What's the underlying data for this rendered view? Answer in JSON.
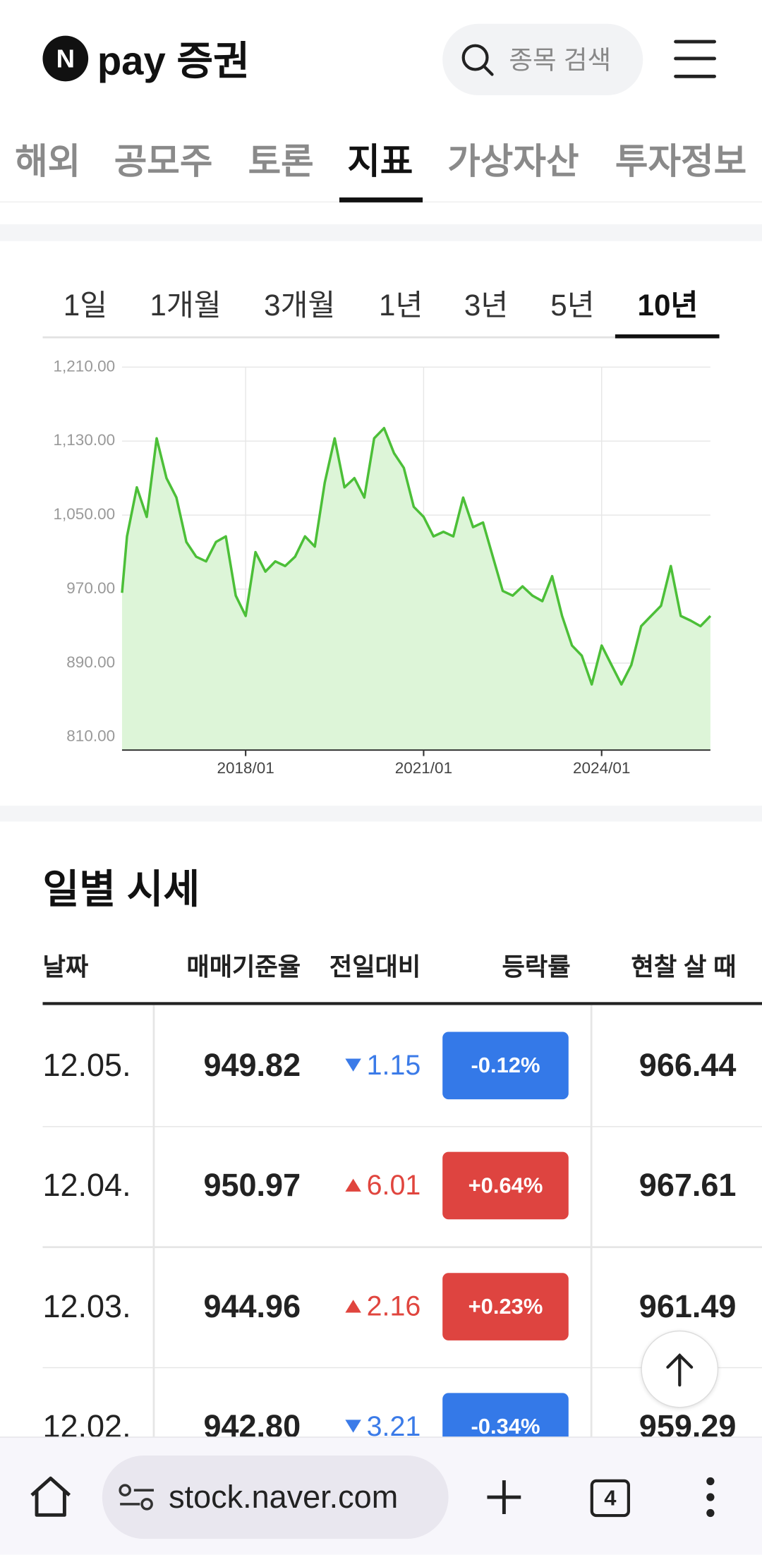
{
  "header": {
    "logo_icon": "N",
    "logo_text": "pay 증권",
    "search_placeholder": "종목 검색"
  },
  "nav_tabs": {
    "items": [
      "해외",
      "공모주",
      "토론",
      "지표",
      "가상자산",
      "투자정보"
    ],
    "selected": 3
  },
  "period_tabs": {
    "items": [
      "1일",
      "1개월",
      "3개월",
      "1년",
      "3년",
      "5년",
      "10년"
    ],
    "selected": 6
  },
  "chart_data": {
    "type": "area",
    "color": "#4cbf38",
    "fill_color": "#ddf5d8",
    "x": [
      "2015/12",
      "2016/01",
      "2016/03",
      "2016/05",
      "2016/07",
      "2016/09",
      "2016/11",
      "2017/01",
      "2017/03",
      "2017/05",
      "2017/07",
      "2017/09",
      "2017/11",
      "2018/01",
      "2018/03",
      "2018/05",
      "2018/07",
      "2018/09",
      "2018/11",
      "2019/01",
      "2019/03",
      "2019/05",
      "2019/07",
      "2019/09",
      "2019/11",
      "2020/01",
      "2020/03",
      "2020/05",
      "2020/07",
      "2020/09",
      "2020/11",
      "2021/01",
      "2021/03",
      "2021/05",
      "2021/07",
      "2021/09",
      "2021/11",
      "2022/01",
      "2022/03",
      "2022/05",
      "2022/07",
      "2022/09",
      "2022/11",
      "2023/01",
      "2023/03",
      "2023/05",
      "2023/07",
      "2023/09",
      "2023/11",
      "2024/01",
      "2024/03",
      "2024/05",
      "2024/07",
      "2024/09",
      "2024/11",
      "2025/01",
      "2025/03",
      "2025/05",
      "2025/07",
      "2025/09",
      "2025/11"
    ],
    "values": [
      966,
      1027,
      1080,
      1048,
      1133,
      1090,
      1069,
      1021,
      1005,
      1000,
      1021,
      1027,
      963,
      941,
      1010,
      989,
      1000,
      995,
      1005,
      1027,
      1016,
      1085,
      1133,
      1080,
      1090,
      1069,
      1133,
      1144,
      1117,
      1101,
      1059,
      1048,
      1027,
      1032,
      1027,
      1069,
      1037,
      1042,
      1005,
      968,
      963,
      973,
      963,
      957,
      984,
      941,
      909,
      898,
      867,
      909,
      888,
      867,
      888,
      930,
      941,
      952,
      995,
      941,
      936,
      930,
      941
    ],
    "ylim": [
      796,
      1210
    ],
    "yticks": [
      {
        "value": 810,
        "label": "810.00"
      },
      {
        "value": 890,
        "label": "890.00"
      },
      {
        "value": 970,
        "label": "970.00"
      },
      {
        "value": 1050,
        "label": "1,050.00"
      },
      {
        "value": 1130,
        "label": "1,130.00"
      },
      {
        "value": 1210,
        "label": "1,210.00"
      }
    ],
    "xticks": [
      "2018/01",
      "2021/01",
      "2024/01"
    ],
    "grid": true
  },
  "daily_prices": {
    "title": "일별 시세",
    "columns": [
      "날짜",
      "매매기준율",
      "전일대비",
      "등락률",
      "현찰 살 때"
    ],
    "rows": [
      {
        "date": "12.05.",
        "rate": "949.82",
        "direction": "down",
        "change": "1.15",
        "change_pct": "-0.12%",
        "cash_buy": "966.44"
      },
      {
        "date": "12.04.",
        "rate": "950.97",
        "direction": "up",
        "change": "6.01",
        "change_pct": "+0.64%",
        "cash_buy": "967.61"
      },
      {
        "date": "12.03.",
        "rate": "944.96",
        "direction": "up",
        "change": "2.16",
        "change_pct": "+0.23%",
        "cash_buy": "961.49"
      },
      {
        "date": "12.02.",
        "rate": "942.80",
        "direction": "down",
        "change": "3.21",
        "change_pct": "-0.34%",
        "cash_buy": "959.29"
      }
    ]
  },
  "browser_bar": {
    "url": "stock.naver.com",
    "tab_count": "4"
  }
}
